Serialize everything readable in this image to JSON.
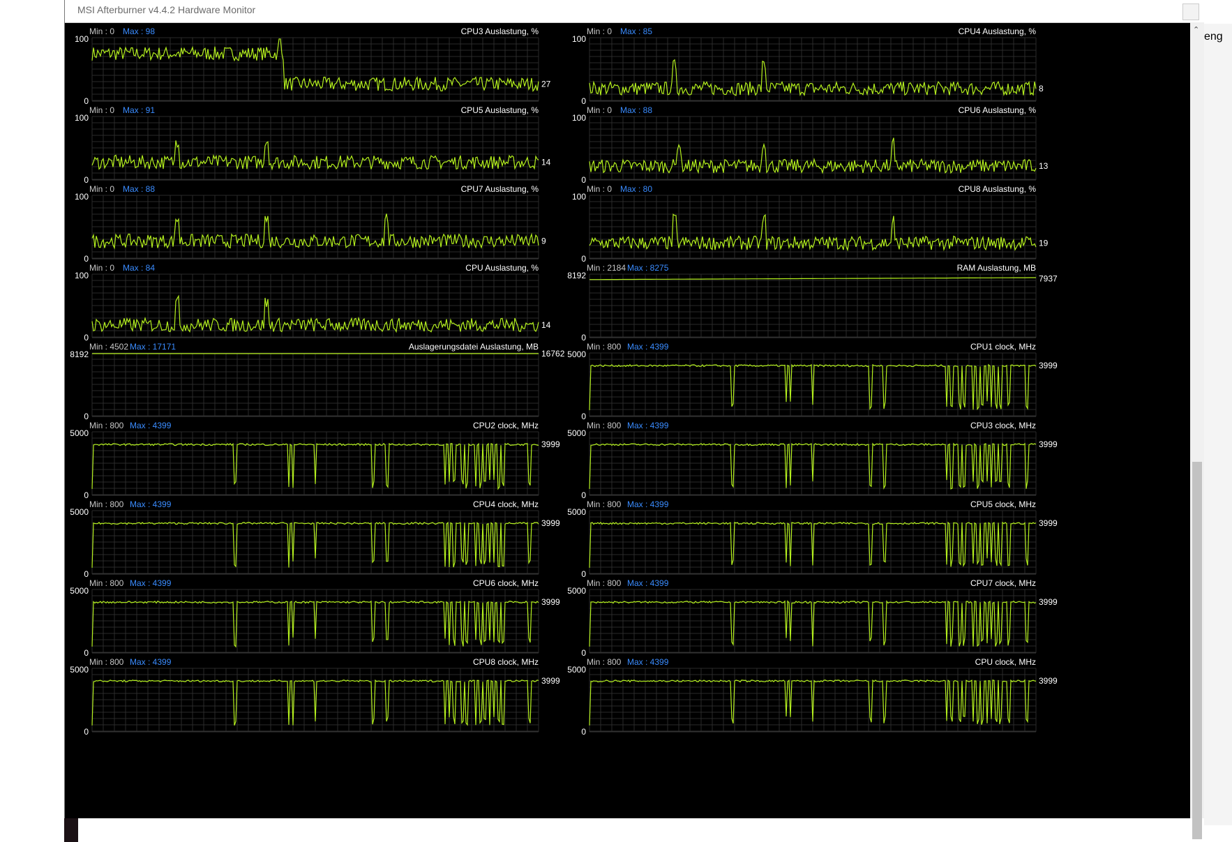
{
  "window": {
    "title": "MSI Afterburner v4.4.2 Hardware Monitor"
  },
  "background_right": {
    "text": "eng"
  },
  "labels": {
    "min_prefix": "Min : ",
    "max_prefix": "Max : "
  },
  "colors": {
    "trace": "#b4f01e",
    "grid": "#2a2a2a",
    "label": "#ffffff",
    "minmax": "#3a8cff"
  },
  "graphs": [
    {
      "title": "CPU3 Auslastung, %",
      "min": "0",
      "max": "98",
      "ymax_label": "100",
      "ymin_label": "0",
      "current": "27",
      "kind": "load",
      "level": 0.75,
      "level2": 0.27,
      "split": 0.43,
      "spikes": [
        0.42
      ]
    },
    {
      "title": "CPU4 Auslastung, %",
      "min": "0",
      "max": "85",
      "ymax_label": "100",
      "ymin_label": "0",
      "current": "8",
      "kind": "load",
      "level": 0.2,
      "level2": 0.2,
      "split": 0.5,
      "spikes": [
        0.19,
        0.39
      ]
    },
    {
      "title": "CPU5 Auslastung, %",
      "min": "0",
      "max": "91",
      "ymax_label": "100",
      "ymin_label": "0",
      "current": "14",
      "kind": "load",
      "level": 0.28,
      "level2": 0.28,
      "split": 0.5,
      "spikes": [
        0.19,
        0.39
      ]
    },
    {
      "title": "CPU6 Auslastung, %",
      "min": "0",
      "max": "88",
      "ymax_label": "100",
      "ymin_label": "0",
      "current": "13",
      "kind": "load",
      "level": 0.22,
      "level2": 0.22,
      "split": 0.5,
      "spikes": [
        0.2,
        0.39,
        0.68
      ]
    },
    {
      "title": "CPU7 Auslastung, %",
      "min": "0",
      "max": "88",
      "ymax_label": "100",
      "ymin_label": "0",
      "current": "9",
      "kind": "load",
      "level": 0.28,
      "level2": 0.28,
      "split": 0.5,
      "spikes": [
        0.19,
        0.39,
        0.66
      ]
    },
    {
      "title": "CPU8 Auslastung, %",
      "min": "0",
      "max": "80",
      "ymax_label": "100",
      "ymin_label": "0",
      "current": "19",
      "kind": "load",
      "level": 0.25,
      "level2": 0.25,
      "split": 0.5,
      "spikes": [
        0.19,
        0.39,
        0.68
      ]
    },
    {
      "title": "CPU Auslastung, %",
      "min": "0",
      "max": "84",
      "ymax_label": "100",
      "ymin_label": "0",
      "current": "14",
      "kind": "load",
      "level": 0.2,
      "level2": 0.2,
      "split": 0.5,
      "spikes": [
        0.19,
        0.39
      ]
    },
    {
      "title": "RAM Auslastung, MB",
      "min": "2184",
      "max": "8275",
      "ymax_label": "8192",
      "ymin_label": "0",
      "current": "7937",
      "kind": "flat",
      "level": 0.93
    },
    {
      "title": "Auslagerungsdatei Auslastung, MB",
      "min": "4502",
      "max": "17171",
      "ymax_label": "8192",
      "ymin_label": "0",
      "current": "16762",
      "kind": "flatfull",
      "level": 1.0
    },
    {
      "title": "CPU1 clock, MHz",
      "min": "800",
      "max": "4399",
      "ymax_label": "5000",
      "ymin_label": "0",
      "current": "3999",
      "kind": "clock",
      "level": 0.8,
      "dips": [
        0.32,
        0.44,
        0.45,
        0.5,
        0.63,
        0.66,
        0.8,
        0.81,
        0.83,
        0.84,
        0.86,
        0.87,
        0.88,
        0.89,
        0.9,
        0.91,
        0.92,
        0.94,
        0.98
      ]
    },
    {
      "title": "CPU2 clock, MHz",
      "min": "800",
      "max": "4399",
      "ymax_label": "5000",
      "ymin_label": "0",
      "current": "3999",
      "kind": "clock",
      "level": 0.8,
      "dips": [
        0.32,
        0.44,
        0.45,
        0.5,
        0.63,
        0.66,
        0.79,
        0.8,
        0.81,
        0.83,
        0.84,
        0.86,
        0.87,
        0.88,
        0.89,
        0.9,
        0.91,
        0.92,
        0.98
      ]
    },
    {
      "title": "CPU3 clock, MHz",
      "min": "800",
      "max": "4399",
      "ymax_label": "5000",
      "ymin_label": "0",
      "current": "3999",
      "kind": "clock",
      "level": 0.8,
      "dips": [
        0.32,
        0.44,
        0.45,
        0.5,
        0.63,
        0.66,
        0.8,
        0.81,
        0.83,
        0.84,
        0.86,
        0.87,
        0.88,
        0.89,
        0.9,
        0.91,
        0.92,
        0.94,
        0.98
      ]
    },
    {
      "title": "CPU4 clock, MHz",
      "min": "800",
      "max": "4399",
      "ymax_label": "5000",
      "ymin_label": "0",
      "current": "3999",
      "kind": "clock",
      "level": 0.8,
      "dips": [
        0.32,
        0.44,
        0.45,
        0.5,
        0.63,
        0.66,
        0.79,
        0.8,
        0.81,
        0.83,
        0.84,
        0.86,
        0.87,
        0.88,
        0.89,
        0.9,
        0.91,
        0.92,
        0.98
      ]
    },
    {
      "title": "CPU5 clock, MHz",
      "min": "800",
      "max": "4399",
      "ymax_label": "5000",
      "ymin_label": "0",
      "current": "3999",
      "kind": "clock",
      "level": 0.8,
      "dips": [
        0.32,
        0.44,
        0.45,
        0.5,
        0.63,
        0.66,
        0.8,
        0.81,
        0.83,
        0.84,
        0.86,
        0.87,
        0.88,
        0.89,
        0.9,
        0.91,
        0.92,
        0.94,
        0.98
      ]
    },
    {
      "title": "CPU6 clock, MHz",
      "min": "800",
      "max": "4399",
      "ymax_label": "5000",
      "ymin_label": "0",
      "current": "3999",
      "kind": "clock",
      "level": 0.8,
      "dips": [
        0.32,
        0.44,
        0.45,
        0.5,
        0.63,
        0.66,
        0.79,
        0.8,
        0.81,
        0.83,
        0.84,
        0.86,
        0.87,
        0.88,
        0.89,
        0.9,
        0.91,
        0.92,
        0.98
      ]
    },
    {
      "title": "CPU7 clock, MHz",
      "min": "800",
      "max": "4399",
      "ymax_label": "5000",
      "ymin_label": "0",
      "current": "3999",
      "kind": "clock",
      "level": 0.8,
      "dips": [
        0.32,
        0.44,
        0.45,
        0.5,
        0.63,
        0.66,
        0.8,
        0.81,
        0.83,
        0.84,
        0.86,
        0.87,
        0.88,
        0.89,
        0.9,
        0.91,
        0.92,
        0.94,
        0.98
      ]
    },
    {
      "title": "CPU8 clock, MHz",
      "min": "800",
      "max": "4399",
      "ymax_label": "5000",
      "ymin_label": "0",
      "current": "3999",
      "kind": "clock",
      "level": 0.8,
      "dips": [
        0.32,
        0.44,
        0.45,
        0.5,
        0.63,
        0.66,
        0.79,
        0.8,
        0.81,
        0.83,
        0.84,
        0.86,
        0.87,
        0.88,
        0.89,
        0.9,
        0.91,
        0.92,
        0.98
      ]
    },
    {
      "title": "CPU clock, MHz",
      "min": "800",
      "max": "4399",
      "ymax_label": "5000",
      "ymin_label": "0",
      "current": "3999",
      "kind": "clock",
      "level": 0.8,
      "dips": [
        0.32,
        0.44,
        0.45,
        0.5,
        0.63,
        0.66,
        0.8,
        0.81,
        0.83,
        0.84,
        0.86,
        0.87,
        0.88,
        0.89,
        0.9,
        0.91,
        0.92,
        0.94,
        0.98
      ]
    }
  ]
}
